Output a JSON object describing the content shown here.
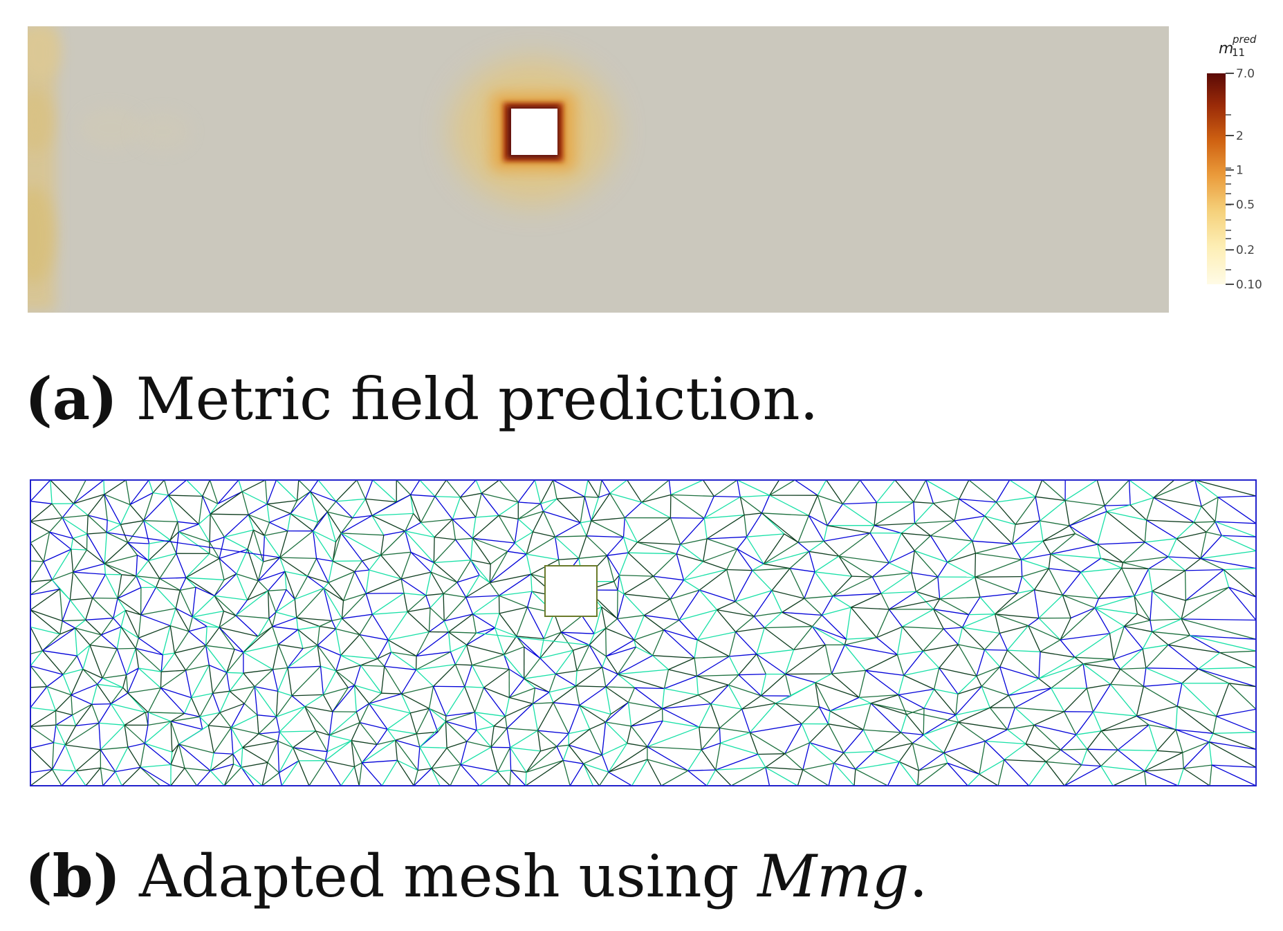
{
  "panel_a": {
    "colorbar": {
      "title_base": "m",
      "title_sup": "pred",
      "title_sub": "11",
      "ticks": [
        "7.0",
        "2",
        "1",
        "0.5",
        "0.2",
        "0.10"
      ],
      "tick_values": [
        7.0,
        2,
        1,
        0.5,
        0.2,
        0.1
      ],
      "range": [
        0.1,
        7.0
      ],
      "scale": "log",
      "colors": [
        "#fffbe6",
        "#fdeeb4",
        "#f5d07a",
        "#ea9a3a",
        "#cf6212",
        "#9a2a08",
        "#5a0a06"
      ]
    },
    "field_background": "#cbc8bd",
    "caption_tag": "(a)",
    "caption_text": "Metric field prediction."
  },
  "panel_b": {
    "edge_colors": [
      "#0000d8",
      "#16e0a6",
      "#0b3a1c",
      "#1a6e3c"
    ],
    "caption_tag": "(b)",
    "caption_text": "Adapted mesh using ",
    "caption_italic": "Mmg",
    "caption_end": "."
  }
}
